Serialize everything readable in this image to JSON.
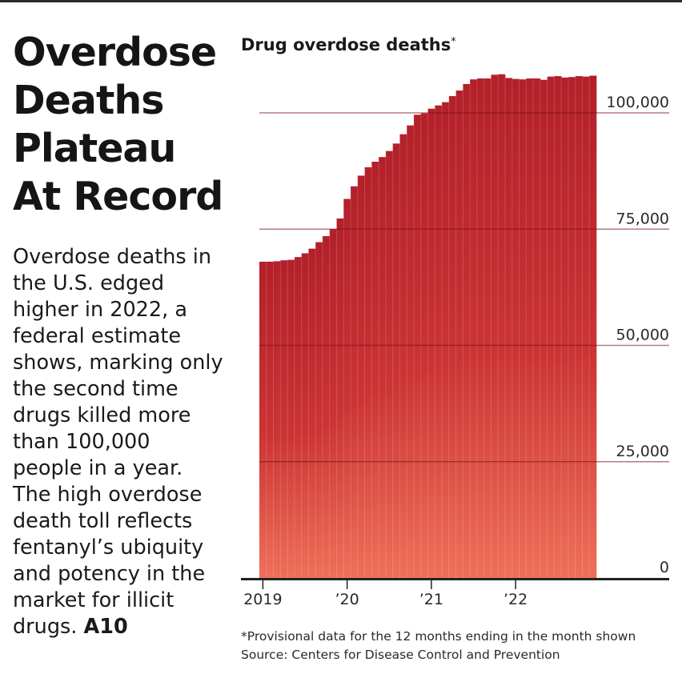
{
  "headline": [
    "Overdose",
    "Deaths",
    "Plateau",
    "At Record"
  ],
  "summary": {
    "text": "Overdose deaths in the U.S. edged higher in 2022, a federal estimate shows, marking only the second time drugs killed more than 100,000 people in a year. The high overdose death toll reflects fentanyl’s ubiquity and potency in the market for illicit drugs.",
    "page_ref": "A10"
  },
  "chart_data": {
    "type": "bar",
    "title": "Drug overdose deaths",
    "title_mark": "*",
    "xlabel": "",
    "ylabel": "",
    "ylim": [
      0,
      108000
    ],
    "y_ticks": [
      0,
      25000,
      50000,
      75000,
      100000
    ],
    "y_tick_labels": [
      "0",
      "25,000",
      "50,000",
      "75,000",
      "100,000"
    ],
    "x_tick_labels": [
      "2019",
      "’20",
      "’21",
      "’22"
    ],
    "x_tick_index": [
      0,
      12,
      24,
      36
    ],
    "gridlines": true,
    "colors": {
      "top": "#b3202a",
      "mid": "#cc3434",
      "bottom": "#ee7059"
    },
    "categories": [
      "Jan 2019",
      "Feb 2019",
      "Mar 2019",
      "Apr 2019",
      "May 2019",
      "Jun 2019",
      "Jul 2019",
      "Aug 2019",
      "Sep 2019",
      "Oct 2019",
      "Nov 2019",
      "Dec 2019",
      "Jan 2020",
      "Feb 2020",
      "Mar 2020",
      "Apr 2020",
      "May 2020",
      "Jun 2020",
      "Jul 2020",
      "Aug 2020",
      "Sep 2020",
      "Oct 2020",
      "Nov 2020",
      "Dec 2020",
      "Jan 2021",
      "Feb 2021",
      "Mar 2021",
      "Apr 2021",
      "May 2021",
      "Jun 2021",
      "Jul 2021",
      "Aug 2021",
      "Sep 2021",
      "Oct 2021",
      "Nov 2021",
      "Dec 2021",
      "Jan 2022",
      "Feb 2022",
      "Mar 2022",
      "Apr 2022",
      "May 2022",
      "Jun 2022",
      "Jul 2022",
      "Aug 2022",
      "Sep 2022",
      "Oct 2022",
      "Nov 2022",
      "Dec 2022"
    ],
    "values": [
      68000,
      68000,
      68100,
      68300,
      68400,
      69000,
      69800,
      70800,
      72200,
      73500,
      75000,
      77300,
      81500,
      84200,
      86500,
      88300,
      89500,
      90500,
      91800,
      93400,
      95400,
      97300,
      99600,
      99900,
      100900,
      101600,
      102300,
      103600,
      104800,
      106200,
      107200,
      107400,
      107400,
      108200,
      108300,
      107500,
      107300,
      107200,
      107400,
      107400,
      107100,
      107800,
      107900,
      107600,
      107700,
      107900,
      107800,
      108000
    ]
  },
  "notes": {
    "footnote": "*Provisional data for the 12 months ending in the month shown",
    "source": "Source: Centers for Disease Control and Prevention"
  }
}
